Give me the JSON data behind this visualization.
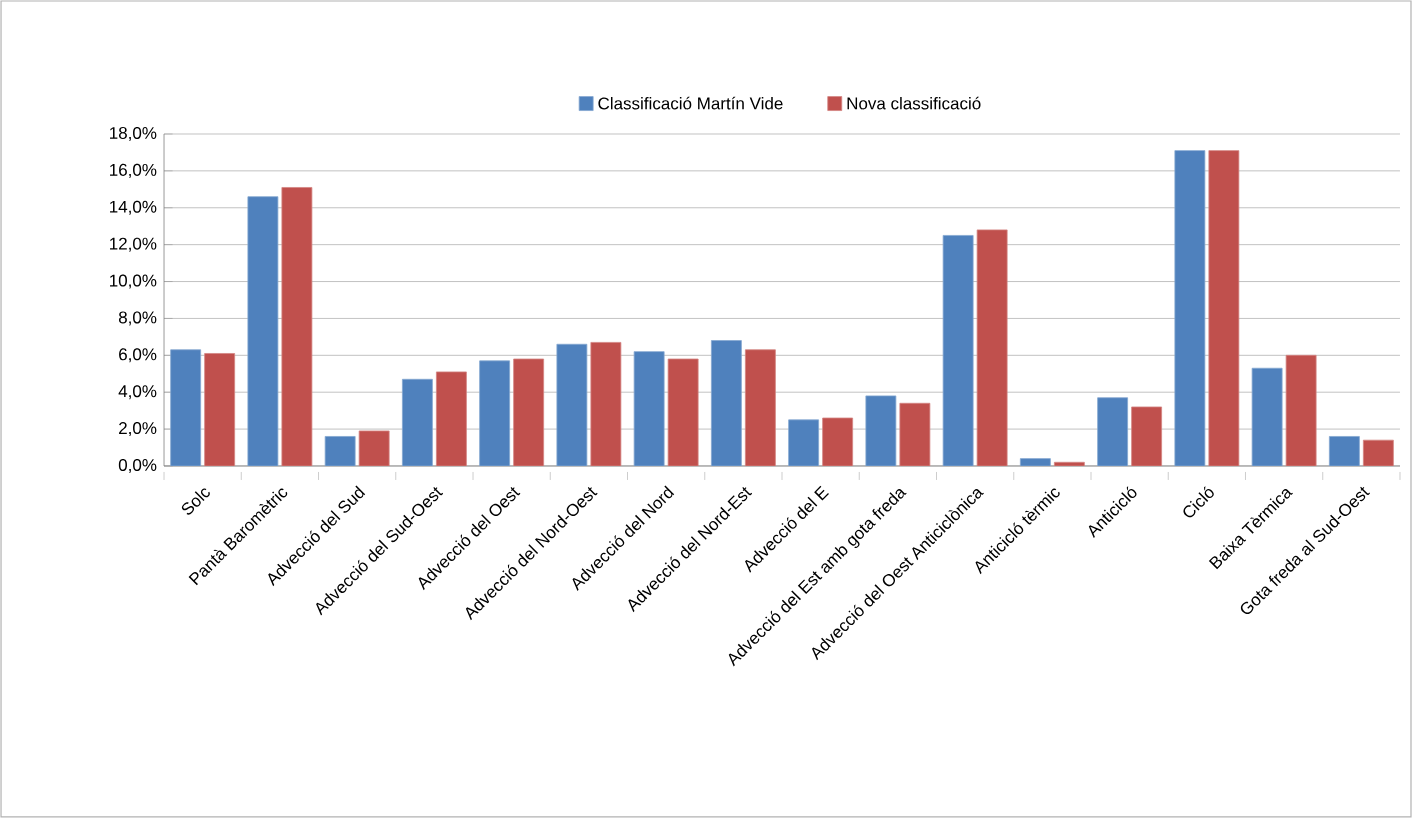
{
  "chart_data": {
    "type": "bar",
    "categories": [
      "Solc",
      "Pantà Baromètric",
      "Advecció del Sud",
      "Advecció del Sud-Oest",
      "Advecció del Oest",
      "Advecció del Nord-Oest",
      "Advecció del Nord",
      "Advecció del Nord-Est",
      "Advecció del E",
      "Advecció del Est  amb gota freda",
      "Advecció del Oest Anticiclònica",
      "Anticicló tèrmic",
      "Anticicló",
      "Cicló",
      "Baixa Tèrmica",
      "Gota freda al Sud-Oest"
    ],
    "series": [
      {
        "name": "Classificació Martín Vide",
        "color": "#4f81bd",
        "values": [
          6.3,
          14.6,
          1.6,
          4.7,
          5.7,
          6.6,
          6.2,
          6.8,
          2.5,
          3.8,
          12.5,
          0.4,
          3.7,
          17.1,
          5.3,
          1.6
        ]
      },
      {
        "name": "Nova classificació",
        "color": "#c0504d",
        "values": [
          6.1,
          15.1,
          1.9,
          5.1,
          5.8,
          6.7,
          5.8,
          6.3,
          2.6,
          3.4,
          12.8,
          0.2,
          3.2,
          17.1,
          6.0,
          1.4
        ]
      }
    ],
    "ylim": [
      0,
      18
    ],
    "yticks": [
      {
        "value": 0,
        "label": "0,0%"
      },
      {
        "value": 2,
        "label": "2,0%"
      },
      {
        "value": 4,
        "label": "4,0%"
      },
      {
        "value": 6,
        "label": "6,0%"
      },
      {
        "value": 8,
        "label": "8,0%"
      },
      {
        "value": 10,
        "label": "10,0%"
      },
      {
        "value": 12,
        "label": "12,0%"
      },
      {
        "value": 14,
        "label": "14,0%"
      },
      {
        "value": 16,
        "label": "16,0%"
      },
      {
        "value": 18,
        "label": "18,0%"
      }
    ],
    "grid": "y",
    "legend": "top"
  }
}
